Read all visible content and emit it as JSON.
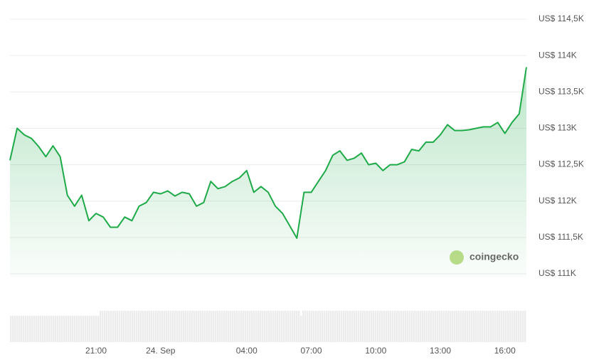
{
  "chart_data": {
    "type": "area",
    "categories": [
      null,
      null,
      null,
      null,
      null,
      null,
      null,
      null,
      null,
      null,
      null,
      null,
      "21:00",
      null,
      null,
      null,
      null,
      null,
      null,
      null,
      null,
      "24. Sep",
      null,
      null,
      null,
      null,
      null,
      null,
      null,
      null,
      null,
      null,
      null,
      "04:00",
      null,
      null,
      null,
      null,
      null,
      null,
      null,
      null,
      "07:00",
      null,
      null,
      null,
      null,
      null,
      null,
      null,
      null,
      "10:00",
      null,
      null,
      null,
      null,
      null,
      null,
      null,
      null,
      "13:00",
      null,
      null,
      null,
      null,
      null,
      null,
      null,
      null,
      "16:00",
      null,
      null,
      null
    ],
    "values": [
      112560,
      113000,
      112910,
      112860,
      112750,
      112610,
      112760,
      112610,
      112080,
      111930,
      112080,
      111730,
      111830,
      111780,
      111640,
      111640,
      111780,
      111730,
      111930,
      111980,
      112120,
      112100,
      112140,
      112070,
      112120,
      112100,
      111930,
      111980,
      112270,
      112170,
      112200,
      112270,
      112320,
      112420,
      112120,
      112200,
      112120,
      111930,
      111830,
      111660,
      111490,
      112120,
      112120,
      112270,
      112420,
      112630,
      112690,
      112560,
      112590,
      112660,
      112500,
      112520,
      112420,
      112500,
      112500,
      112540,
      112710,
      112690,
      112810,
      112810,
      112910,
      113050,
      112970,
      112970,
      112980,
      113000,
      113020,
      113020,
      113080,
      112930,
      113080,
      113200,
      113840
    ],
    "color": "#1eaa48",
    "ylim": [
      111000,
      114500
    ],
    "yticks": [
      {
        "value": 114500,
        "label": "US$ 114,5K"
      },
      {
        "value": 114000,
        "label": "US$ 114K"
      },
      {
        "value": 113500,
        "label": "US$ 113,5K"
      },
      {
        "value": 113000,
        "label": "US$ 113K"
      },
      {
        "value": 112500,
        "label": "US$ 112,5K"
      },
      {
        "value": 112000,
        "label": "US$ 112K"
      },
      {
        "value": 111500,
        "label": "US$ 111,5K"
      },
      {
        "value": 111000,
        "label": "US$ 111K"
      }
    ],
    "grid": true,
    "watermark": "coingecko"
  }
}
